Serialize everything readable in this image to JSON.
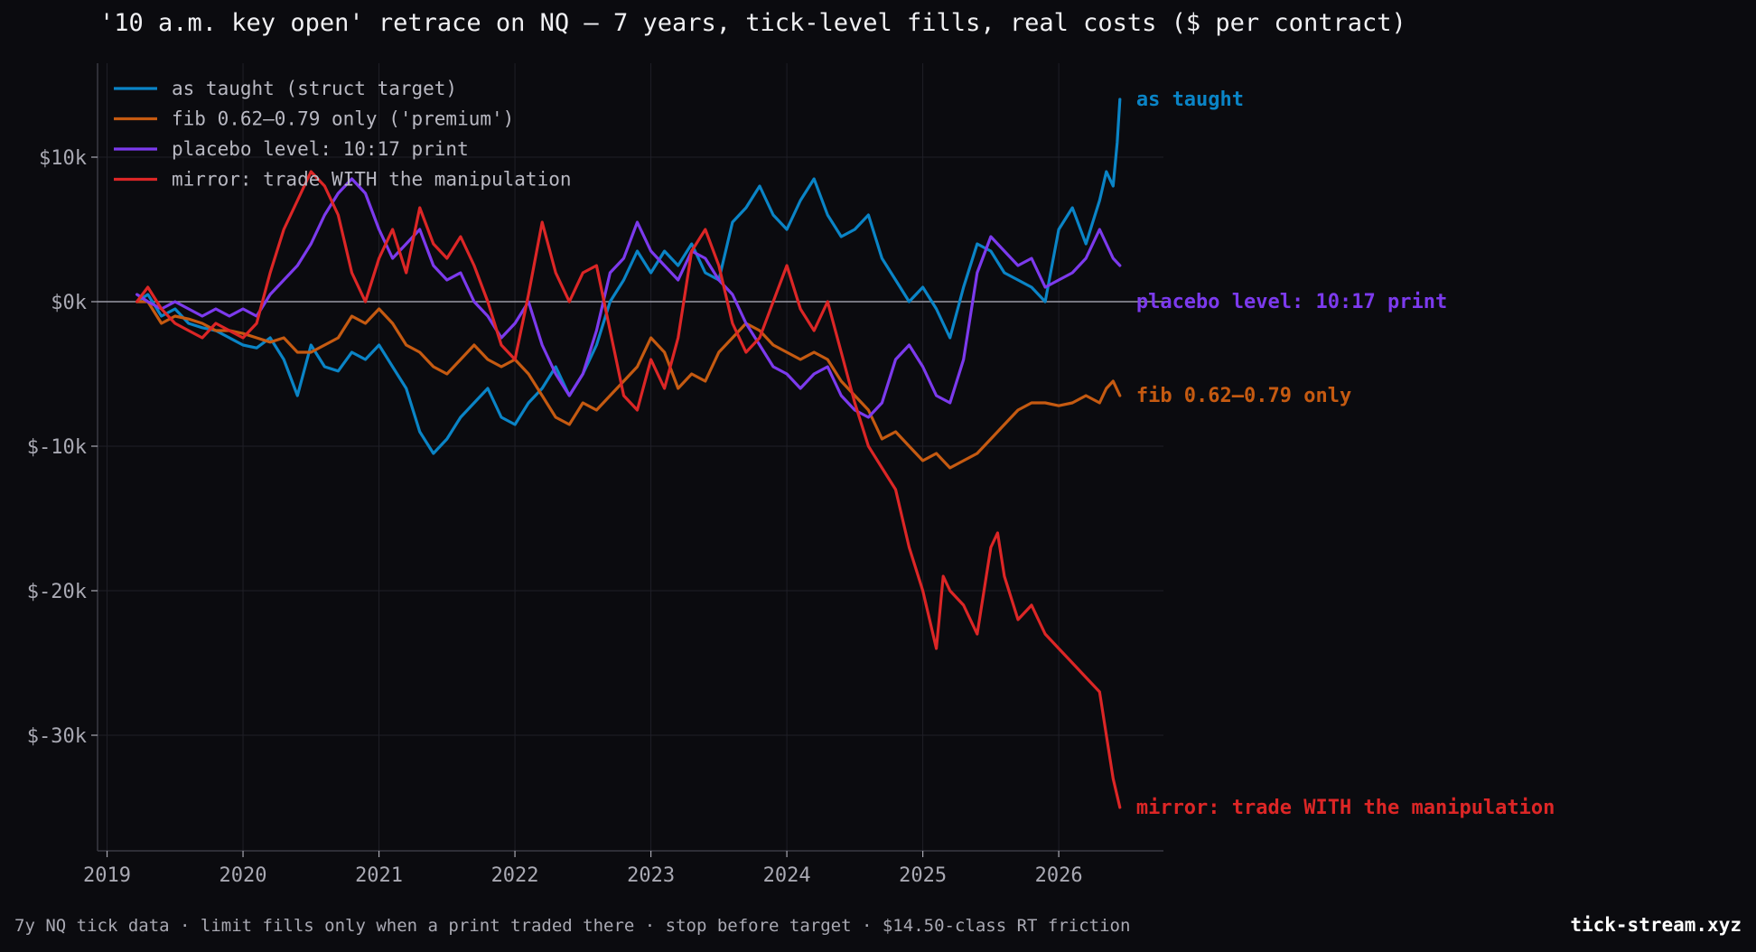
{
  "title": "'10 a.m. key open' retrace on NQ — 7 years, tick-level fills, real costs ($ per contract)",
  "footer_note": "7y NQ tick data · limit fills only when a print traded there · stop before target · $14.50-class RT friction",
  "brand": "tick-stream.xyz",
  "colors": {
    "background": "#0b0b0f",
    "grid": "#1f1f27",
    "zero_line": "#9a9aa6",
    "as_taught": "#0a84c6",
    "fib": "#c55a11",
    "placebo": "#7c3aed",
    "mirror": "#dc2626"
  },
  "chart_data": {
    "type": "line",
    "title": "'10 a.m. key open' retrace on NQ — 7 years, tick-level fills, real costs ($ per contract)",
    "xlabel": "",
    "ylabel": "",
    "xlim": [
      2018.93,
      2026.77
    ],
    "ylim": [
      -38000,
      16500
    ],
    "x_ticks": [
      2019,
      2020,
      2021,
      2022,
      2023,
      2024,
      2025,
      2026
    ],
    "x_tick_labels": [
      "2019",
      "2020",
      "2021",
      "2022",
      "2023",
      "2024",
      "2025",
      "2026"
    ],
    "y_ticks": [
      10000,
      0,
      -10000,
      -20000,
      -30000
    ],
    "y_tick_labels": [
      "$10k",
      "$0k",
      "$-10k",
      "$-20k",
      "$-30k"
    ],
    "grid": true,
    "zero_line": true,
    "legend_position": "top-left",
    "series": [
      {
        "key": "as_taught",
        "name": "as taught (struct target)",
        "end_label": "as taught",
        "x": [
          2019.22,
          2019.3,
          2019.4,
          2019.5,
          2019.6,
          2019.7,
          2019.8,
          2019.9,
          2020.0,
          2020.1,
          2020.2,
          2020.3,
          2020.4,
          2020.5,
          2020.6,
          2020.7,
          2020.8,
          2020.9,
          2021.0,
          2021.1,
          2021.2,
          2021.3,
          2021.4,
          2021.5,
          2021.6,
          2021.7,
          2021.8,
          2021.9,
          2022.0,
          2022.1,
          2022.2,
          2022.3,
          2022.4,
          2022.5,
          2022.6,
          2022.7,
          2022.8,
          2022.9,
          2023.0,
          2023.1,
          2023.2,
          2023.3,
          2023.4,
          2023.5,
          2023.6,
          2023.7,
          2023.8,
          2023.9,
          2024.0,
          2024.1,
          2024.2,
          2024.3,
          2024.4,
          2024.5,
          2024.6,
          2024.7,
          2024.8,
          2024.9,
          2025.0,
          2025.1,
          2025.2,
          2025.3,
          2025.4,
          2025.5,
          2025.6,
          2025.7,
          2025.8,
          2025.9,
          2026.0,
          2026.1,
          2026.2,
          2026.3,
          2026.35,
          2026.4,
          2026.43,
          2026.45
        ],
        "y": [
          0,
          500,
          -1000,
          -500,
          -1500,
          -1800,
          -2000,
          -2500,
          -3000,
          -3200,
          -2500,
          -4000,
          -6500,
          -3000,
          -4500,
          -4800,
          -3500,
          -4000,
          -3000,
          -4500,
          -6000,
          -9000,
          -10500,
          -9500,
          -8000,
          -7000,
          -6000,
          -8000,
          -8500,
          -7000,
          -6000,
          -4500,
          -6500,
          -5000,
          -3000,
          0,
          1500,
          3500,
          2000,
          3500,
          2500,
          4000,
          2000,
          1500,
          5500,
          6500,
          8000,
          6000,
          5000,
          7000,
          8500,
          6000,
          4500,
          5000,
          6000,
          3000,
          1500,
          0,
          1000,
          -500,
          -2500,
          1000,
          4000,
          3500,
          2000,
          1500,
          1000,
          0,
          5000,
          6500,
          4000,
          7000,
          9000,
          8000,
          11000,
          14000
        ]
      },
      {
        "key": "fib",
        "name": "fib 0.62–0.79 only ('premium')",
        "end_label": "fib 0.62–0.79 only",
        "x": [
          2019.22,
          2019.3,
          2019.4,
          2019.5,
          2019.6,
          2019.7,
          2019.8,
          2019.9,
          2020.0,
          2020.1,
          2020.2,
          2020.3,
          2020.4,
          2020.5,
          2020.6,
          2020.7,
          2020.8,
          2020.9,
          2021.0,
          2021.1,
          2021.2,
          2021.3,
          2021.4,
          2021.5,
          2021.6,
          2021.7,
          2021.8,
          2021.9,
          2022.0,
          2022.1,
          2022.2,
          2022.3,
          2022.4,
          2022.5,
          2022.6,
          2022.7,
          2022.8,
          2022.9,
          2023.0,
          2023.1,
          2023.2,
          2023.3,
          2023.4,
          2023.5,
          2023.6,
          2023.7,
          2023.8,
          2023.9,
          2024.0,
          2024.1,
          2024.2,
          2024.3,
          2024.4,
          2024.5,
          2024.6,
          2024.7,
          2024.8,
          2024.9,
          2025.0,
          2025.1,
          2025.2,
          2025.3,
          2025.4,
          2025.5,
          2025.6,
          2025.7,
          2025.8,
          2025.9,
          2026.0,
          2026.1,
          2026.2,
          2026.3,
          2026.35,
          2026.4,
          2026.45
        ],
        "y": [
          0,
          0,
          -1500,
          -1000,
          -1200,
          -1500,
          -2000,
          -2000,
          -2200,
          -2500,
          -2800,
          -2500,
          -3500,
          -3500,
          -3000,
          -2500,
          -1000,
          -1500,
          -500,
          -1500,
          -3000,
          -3500,
          -4500,
          -5000,
          -4000,
          -3000,
          -4000,
          -4500,
          -4000,
          -5000,
          -6500,
          -8000,
          -8500,
          -7000,
          -7500,
          -6500,
          -5500,
          -4500,
          -2500,
          -3500,
          -6000,
          -5000,
          -5500,
          -3500,
          -2500,
          -1500,
          -2000,
          -3000,
          -3500,
          -4000,
          -3500,
          -4000,
          -5500,
          -6500,
          -7500,
          -9500,
          -9000,
          -10000,
          -11000,
          -10500,
          -11500,
          -11000,
          -10500,
          -9500,
          -8500,
          -7500,
          -7000,
          -7000,
          -7200,
          -7000,
          -6500,
          -7000,
          -6000,
          -5500,
          -6500
        ]
      },
      {
        "key": "placebo",
        "name": "placebo level: 10:17 print",
        "end_label": "placebo level: 10:17 print",
        "x": [
          2019.22,
          2019.3,
          2019.4,
          2019.5,
          2019.6,
          2019.7,
          2019.8,
          2019.9,
          2020.0,
          2020.1,
          2020.2,
          2020.3,
          2020.4,
          2020.5,
          2020.6,
          2020.7,
          2020.8,
          2020.9,
          2021.0,
          2021.1,
          2021.2,
          2021.3,
          2021.4,
          2021.5,
          2021.6,
          2021.7,
          2021.8,
          2021.9,
          2022.0,
          2022.1,
          2022.2,
          2022.3,
          2022.4,
          2022.5,
          2022.6,
          2022.7,
          2022.8,
          2022.9,
          2023.0,
          2023.1,
          2023.2,
          2023.3,
          2023.4,
          2023.5,
          2023.6,
          2023.7,
          2023.8,
          2023.9,
          2024.0,
          2024.1,
          2024.2,
          2024.3,
          2024.4,
          2024.5,
          2024.6,
          2024.7,
          2024.8,
          2024.9,
          2025.0,
          2025.1,
          2025.2,
          2025.3,
          2025.4,
          2025.5,
          2025.6,
          2025.7,
          2025.8,
          2025.9,
          2026.0,
          2026.1,
          2026.2,
          2026.3,
          2026.35,
          2026.4,
          2026.45
        ],
        "y": [
          500,
          0,
          -500,
          0,
          -500,
          -1000,
          -500,
          -1000,
          -500,
          -1000,
          500,
          1500,
          2500,
          4000,
          6000,
          7500,
          8500,
          7500,
          5000,
          3000,
          4000,
          5000,
          2500,
          1500,
          2000,
          0,
          -1000,
          -2500,
          -1500,
          0,
          -3000,
          -5000,
          -6500,
          -5000,
          -2000,
          2000,
          3000,
          5500,
          3500,
          2500,
          1500,
          3500,
          3000,
          1500,
          500,
          -1500,
          -3000,
          -4500,
          -5000,
          -6000,
          -5000,
          -4500,
          -6500,
          -7500,
          -8000,
          -7000,
          -4000,
          -3000,
          -4500,
          -6500,
          -7000,
          -4000,
          2000,
          4500,
          3500,
          2500,
          3000,
          1000,
          1500,
          2000,
          3000,
          5000,
          4000,
          3000,
          2500
        ]
      },
      {
        "key": "mirror",
        "name": "mirror: trade WITH the manipulation",
        "end_label": "mirror: trade WITH the manipulation",
        "x": [
          2019.22,
          2019.3,
          2019.4,
          2019.5,
          2019.6,
          2019.7,
          2019.8,
          2019.9,
          2020.0,
          2020.1,
          2020.2,
          2020.3,
          2020.4,
          2020.5,
          2020.6,
          2020.7,
          2020.8,
          2020.9,
          2021.0,
          2021.1,
          2021.2,
          2021.3,
          2021.4,
          2021.5,
          2021.6,
          2021.7,
          2021.8,
          2021.9,
          2022.0,
          2022.1,
          2022.2,
          2022.3,
          2022.4,
          2022.5,
          2022.6,
          2022.7,
          2022.8,
          2022.9,
          2023.0,
          2023.1,
          2023.2,
          2023.3,
          2023.4,
          2023.5,
          2023.6,
          2023.7,
          2023.8,
          2023.9,
          2024.0,
          2024.1,
          2024.2,
          2024.3,
          2024.4,
          2024.5,
          2024.6,
          2024.7,
          2024.8,
          2024.9,
          2025.0,
          2025.05,
          2025.1,
          2025.15,
          2025.2,
          2025.3,
          2025.4,
          2025.5,
          2025.55,
          2025.6,
          2025.7,
          2025.8,
          2025.9,
          2026.0,
          2026.1,
          2026.2,
          2026.3,
          2026.35,
          2026.4,
          2026.45
        ],
        "y": [
          0,
          1000,
          -500,
          -1500,
          -2000,
          -2500,
          -1500,
          -2000,
          -2500,
          -1500,
          2000,
          5000,
          7000,
          9000,
          8000,
          6000,
          2000,
          0,
          3000,
          5000,
          2000,
          6500,
          4000,
          3000,
          4500,
          2500,
          0,
          -3000,
          -4000,
          500,
          5500,
          2000,
          0,
          2000,
          2500,
          -2000,
          -6500,
          -7500,
          -4000,
          -6000,
          -2500,
          3500,
          5000,
          2500,
          -1500,
          -3500,
          -2500,
          0,
          2500,
          -500,
          -2000,
          0,
          -3500,
          -7000,
          -10000,
          -11500,
          -13000,
          -17000,
          -20000,
          -22000,
          -24000,
          -19000,
          -20000,
          -21000,
          -23000,
          -17000,
          -16000,
          -19000,
          -22000,
          -21000,
          -23000,
          -24000,
          -25000,
          -26000,
          -27000,
          -30000,
          -33000,
          -35000
        ]
      }
    ]
  }
}
